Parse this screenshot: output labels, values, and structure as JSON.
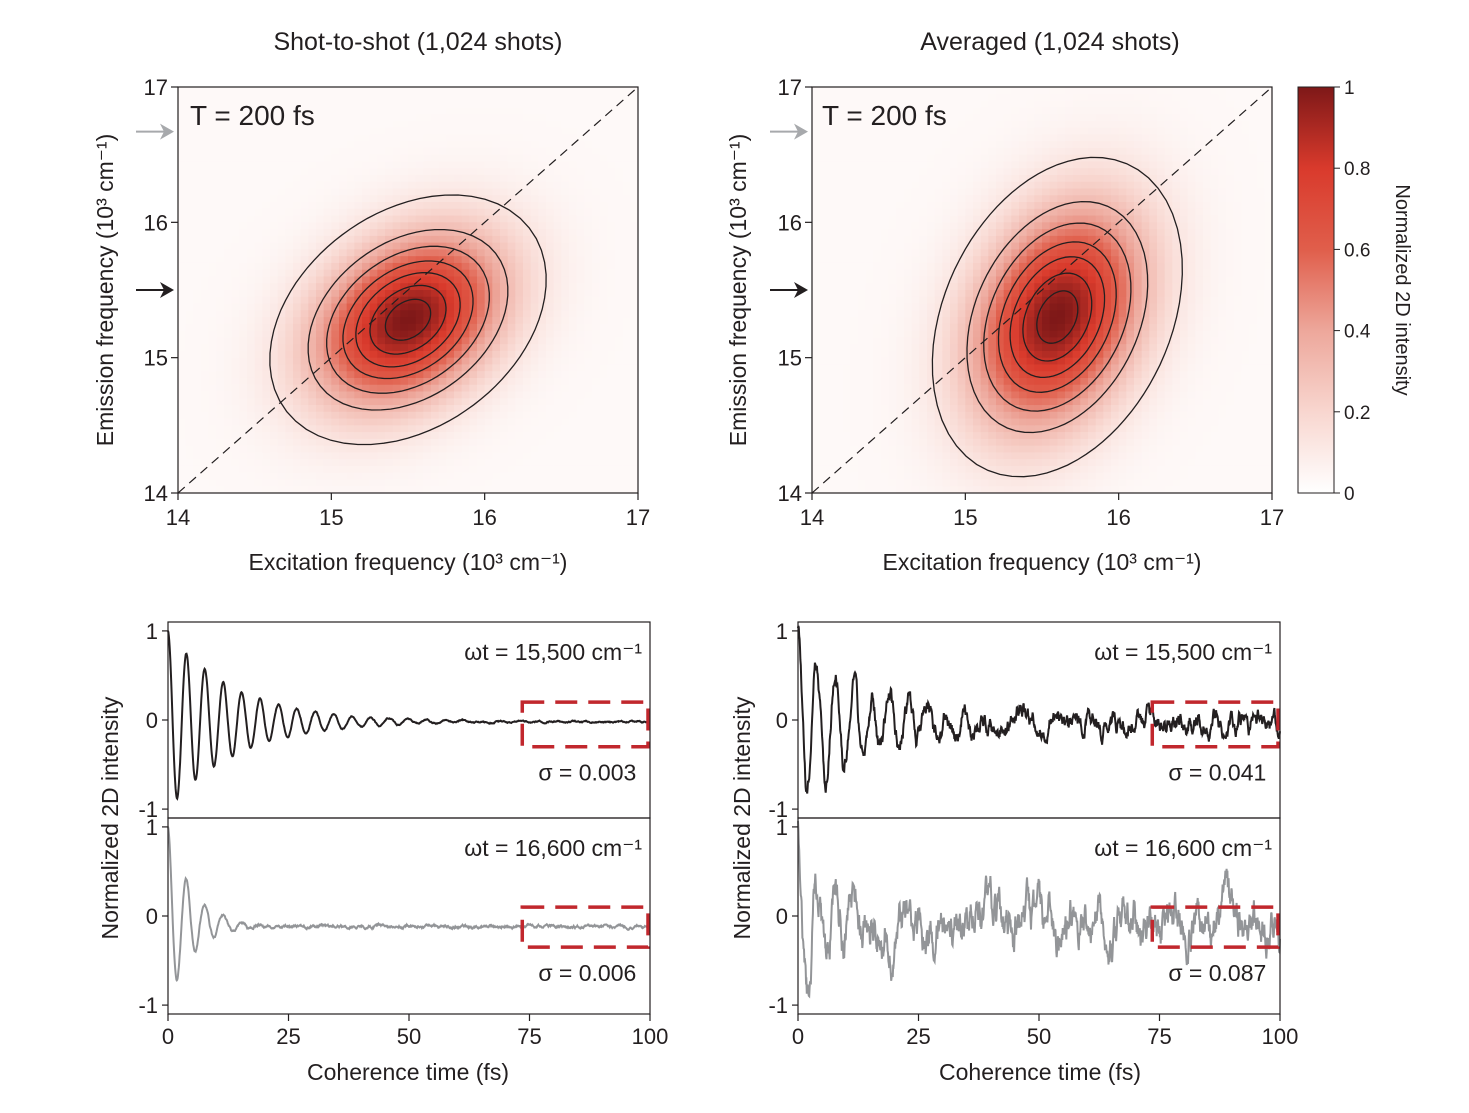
{
  "chart_data": [
    {
      "type": "heatmap",
      "title": "Shot-to-shot (1,024 shots)",
      "annotation": "T = 200 fs",
      "xlabel": "Excitation frequency (10³ cm⁻¹)",
      "ylabel": "Emission frequency (10³ cm⁻¹)",
      "xlim": [
        14,
        17
      ],
      "ylim": [
        14,
        17
      ],
      "xticks": [
        "14",
        "15",
        "16",
        "17"
      ],
      "yticks": [
        "14",
        "15",
        "16",
        "17"
      ],
      "peak": {
        "x": 15.5,
        "y": 15.28
      },
      "spread": {
        "x": 0.42,
        "y": 0.43,
        "corr": 0.32
      },
      "arrows": [
        {
          "y": 16.67,
          "color": "#a7a9ac"
        },
        {
          "y": 15.5,
          "color": "#231f20"
        }
      ],
      "diagonal": true
    },
    {
      "type": "heatmap",
      "title": "Averaged (1,024 shots)",
      "annotation": "T = 200 fs",
      "xlabel": "Excitation frequency (10³ cm⁻¹)",
      "ylabel": "Emission frequency (10³ cm⁻¹)",
      "xlim": [
        14,
        17
      ],
      "ylim": [
        14,
        17
      ],
      "xticks": [
        "14",
        "15",
        "16",
        "17"
      ],
      "yticks": [
        "14",
        "15",
        "16",
        "17"
      ],
      "peak": {
        "x": 15.6,
        "y": 15.3
      },
      "spread": {
        "x": 0.38,
        "y": 0.55,
        "corr": 0.3
      },
      "arrows": [
        {
          "y": 16.67,
          "color": "#a7a9ac"
        },
        {
          "y": 15.5,
          "color": "#231f20"
        }
      ],
      "diagonal": true,
      "colorbar": {
        "label": "Normalized 2D intensity",
        "range": [
          0,
          1
        ],
        "ticks": [
          "0",
          "0.2",
          "0.4",
          "0.6",
          "0.8",
          "1"
        ]
      }
    },
    {
      "type": "line",
      "ylabel": "Normalized 2D intensity",
      "xlabel": "Coherence time (fs)",
      "xlim": [
        0,
        100
      ],
      "xticks": [
        "0",
        "25",
        "50",
        "75",
        "100"
      ],
      "panels": [
        {
          "annotation": "ωt = 15,500 cm⁻¹",
          "sigma": "σ = 0.003",
          "ylim": [
            -1.1,
            1.1
          ],
          "yticks": [
            "-1",
            "0",
            "1"
          ],
          "color": "#231f20",
          "series": {
            "amplitude": 1.0,
            "period": 1.72,
            "decay": 14,
            "noise": 0.003,
            "offset": -0.02
          },
          "box": {
            "x": [
              73.5,
              100
            ],
            "y": [
              -0.3,
              0.2
            ]
          }
        },
        {
          "annotation": "ωt = 16,600 cm⁻¹",
          "sigma": "σ = 0.006",
          "ylim": [
            -1.1,
            1.1
          ],
          "yticks": [
            "-1",
            "0",
            "1"
          ],
          "color": "#939598",
          "series": {
            "amplitude": 1.0,
            "period": 1.72,
            "decay": 5,
            "noise": 0.006,
            "offset": -0.12
          },
          "box": {
            "x": [
              73.5,
              100
            ],
            "y": [
              -0.35,
              0.1
            ]
          }
        }
      ]
    },
    {
      "type": "line",
      "ylabel": "Normalized 2D intensity",
      "xlabel": "Coherence time (fs)",
      "xlim": [
        0,
        100
      ],
      "xticks": [
        "0",
        "25",
        "50",
        "75",
        "100"
      ],
      "panels": [
        {
          "annotation": "ωt = 15,500 cm⁻¹",
          "sigma": "σ = 0.041",
          "ylim": [
            -1.1,
            1.1
          ],
          "yticks": [
            "-1",
            "0",
            "1"
          ],
          "color": "#231f20",
          "series": {
            "amplitude": 1.0,
            "period": 1.72,
            "decay": 14,
            "noise": 0.041,
            "offset": -0.02
          },
          "box": {
            "x": [
              73.5,
              100
            ],
            "y": [
              -0.3,
              0.2
            ]
          }
        },
        {
          "annotation": "ωt = 16,600 cm⁻¹",
          "sigma": "σ = 0.087",
          "ylim": [
            -1.1,
            1.1
          ],
          "yticks": [
            "-1",
            "0",
            "1"
          ],
          "color": "#939598",
          "series": {
            "amplitude": 1.0,
            "period": 1.72,
            "decay": 5,
            "noise": 0.087,
            "offset": -0.12
          },
          "box": {
            "x": [
              73.5,
              100
            ],
            "y": [
              -0.35,
              0.1
            ]
          }
        }
      ]
    }
  ]
}
